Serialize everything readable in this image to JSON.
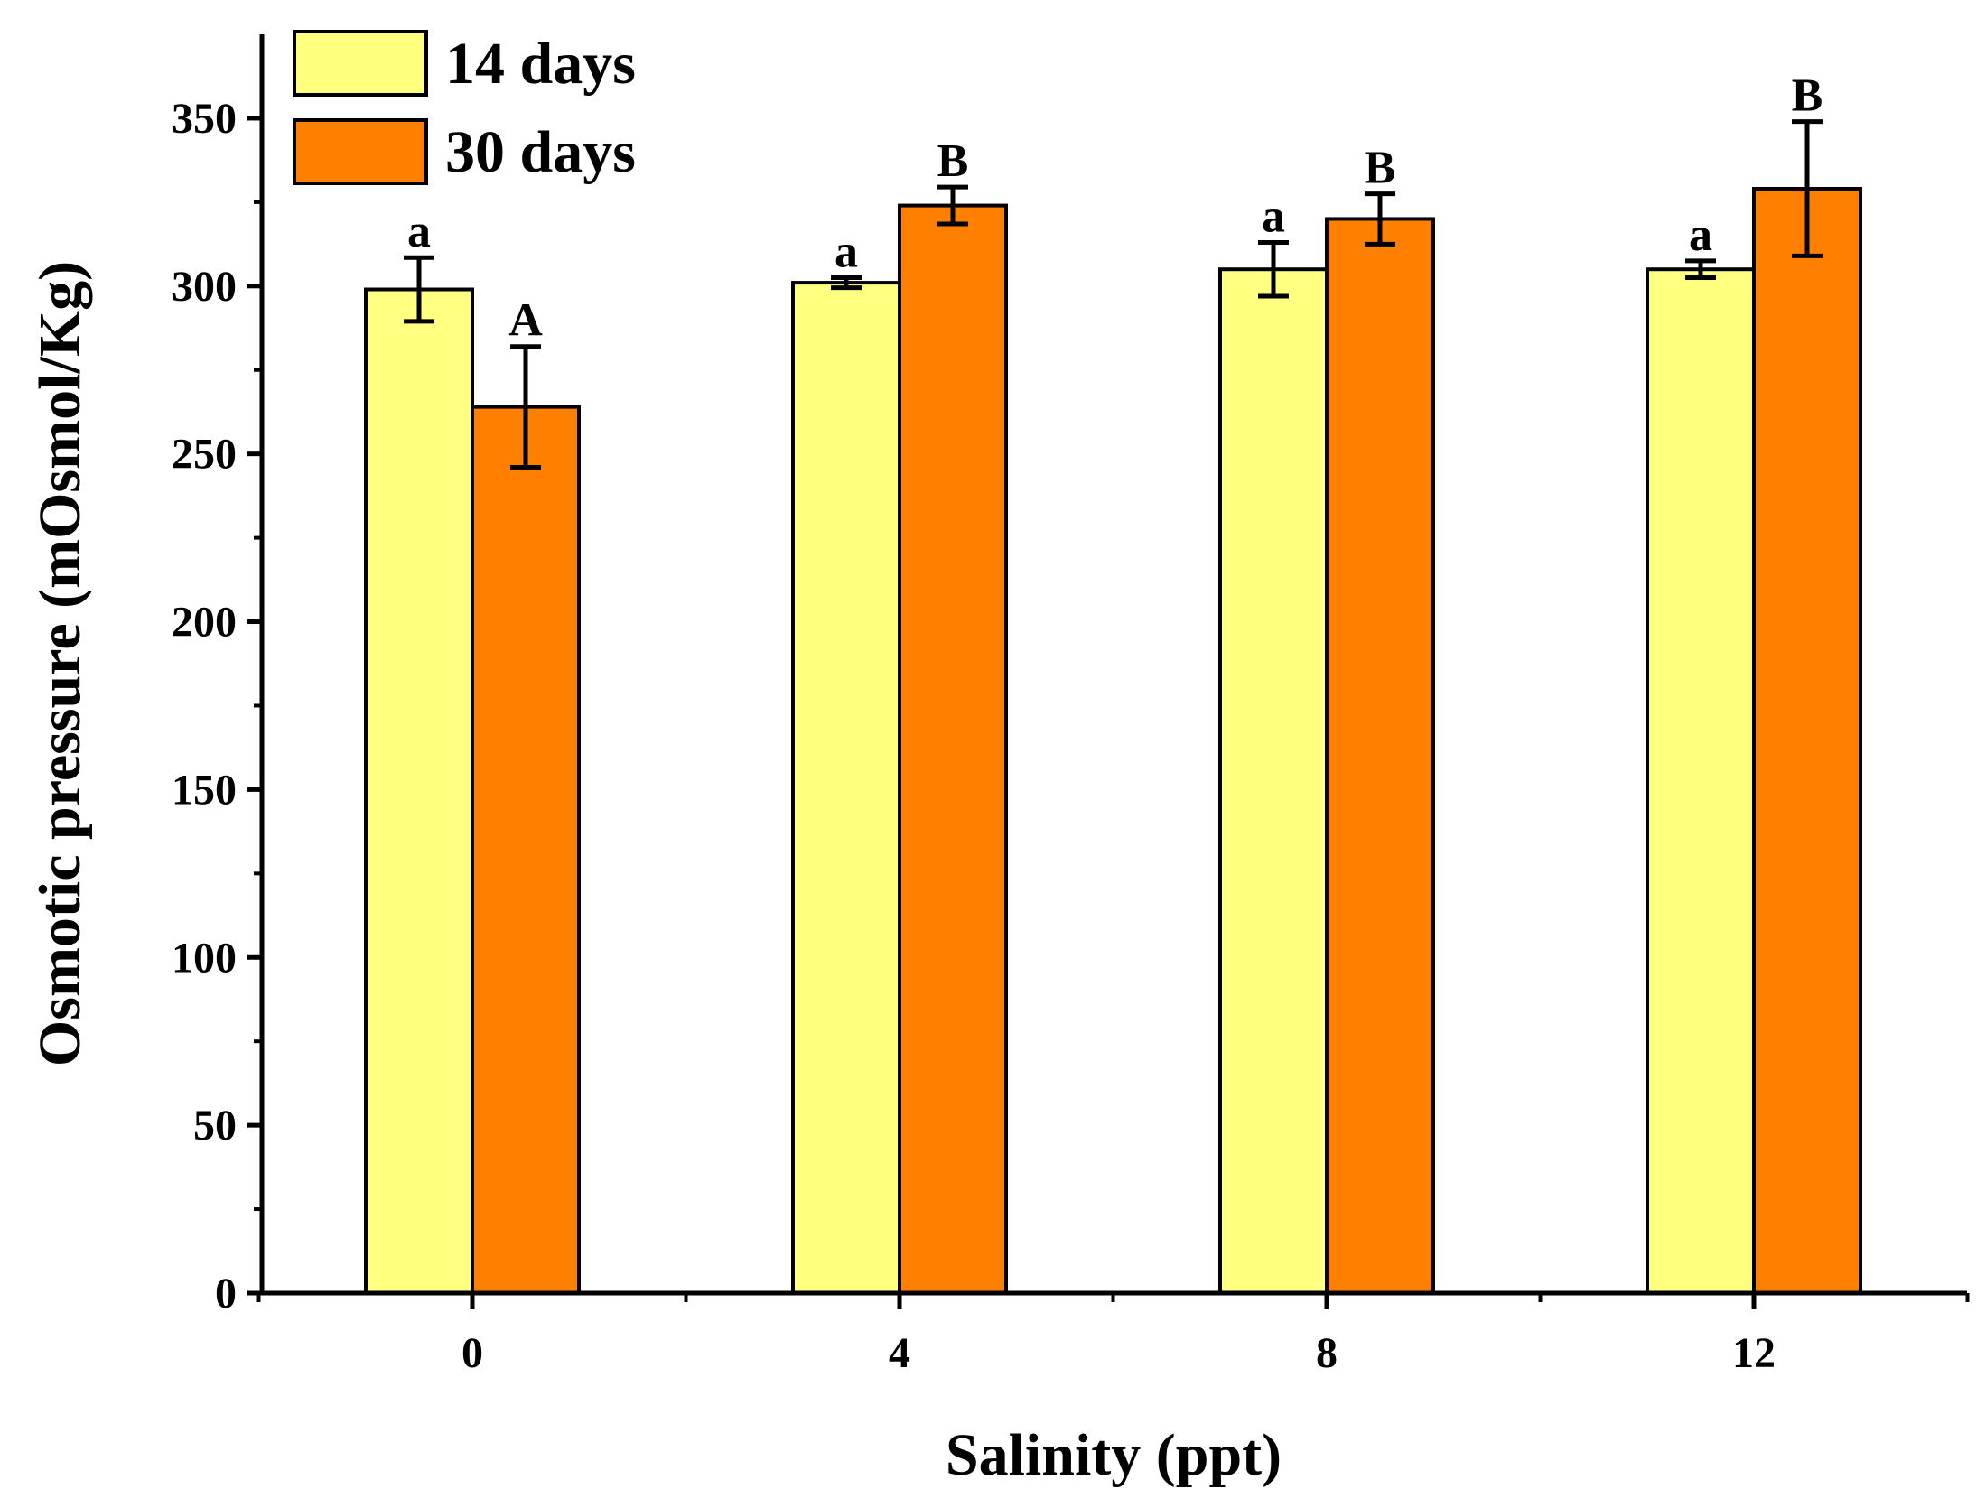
{
  "chart_data": {
    "type": "bar",
    "title": "",
    "xlabel": "Salinity (ppt)",
    "ylabel": "Osmotic pressure (mOsmol/Kg)",
    "categories": [
      "0",
      "4",
      "8",
      "12"
    ],
    "ylim": [
      0,
      375
    ],
    "yticks": [
      "0",
      "50",
      "100",
      "150",
      "200",
      "250",
      "300",
      "350"
    ],
    "legend_position": "top-left",
    "series": [
      {
        "name": "14 days",
        "color": "#ffff80",
        "values": [
          299,
          301,
          305,
          305
        ],
        "errors": [
          9.5,
          1.5,
          8,
          2.5
        ],
        "labels": [
          "a",
          "a",
          "a",
          "a"
        ]
      },
      {
        "name": "30 days",
        "color": "#ff8000",
        "values": [
          264,
          324,
          320,
          329
        ],
        "errors": [
          18,
          5.5,
          7.5,
          20
        ],
        "labels": [
          "A",
          "B",
          "B",
          "B"
        ]
      }
    ]
  }
}
